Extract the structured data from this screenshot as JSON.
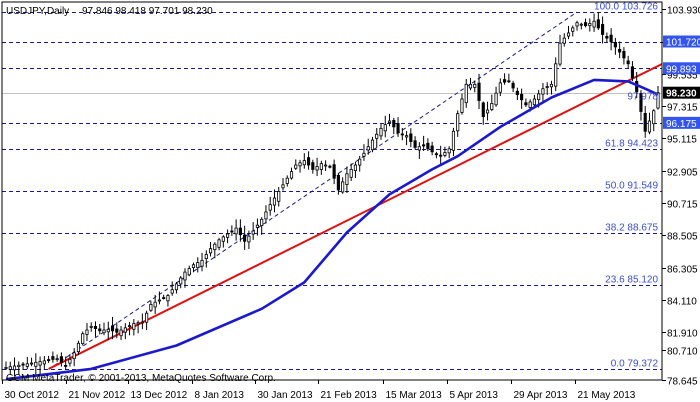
{
  "header": {
    "symbol": "USDJPY,Daily",
    "ohlc": "97.846 98.418 97.701 98.230",
    "watermark": "GCM MetaTrader, © 2001-2013, MetaQuotes Software Corp."
  },
  "colors": {
    "candle": "#000000",
    "ma_line": "#1a1acc",
    "trend_line": "#dd1111",
    "fib_grid": "#1a1a8c",
    "fib_text": "#3a4fd0",
    "tag_bg": "#3355ee",
    "price_tag_bg": "#000000"
  },
  "chart_data": {
    "type": "candlestick",
    "price_range": [
      78.645,
      104.14
    ],
    "y_ticks": [
      "103.930",
      "101.720",
      "99.535",
      "97.315",
      "95.115",
      "92.905",
      "90.715",
      "88.505",
      "86.305",
      "84.110",
      "81.910",
      "80.710",
      "78.645"
    ],
    "x_ticks": [
      "30 Oct 2012",
      "21 Nov 2012",
      "13 Dec 2012",
      "8 Jan 2013",
      "30 Jan 2013",
      "21 Feb 2013",
      "15 Mar 2013",
      "5 Apr 2013",
      "29 Apr 2013",
      "21 May 2013"
    ],
    "fib_levels": [
      {
        "label": "100.0 103.726",
        "price": 103.726
      },
      {
        "label": "61.8 94.423",
        "price": 94.423
      },
      {
        "label": "50.0 91.549",
        "price": 91.549
      },
      {
        "label": "38.2 88.675",
        "price": 88.675
      },
      {
        "label": "23.6 85.120",
        "price": 85.12
      },
      {
        "label": "0.0 79.372",
        "price": 79.372
      }
    ],
    "fib_side_label": {
      "label": "97.978",
      "price": 97.978
    },
    "level_tags": [
      {
        "label": "101.720",
        "price": 101.72
      },
      {
        "label": "99.893",
        "price": 99.893
      },
      {
        "label": "96.175",
        "price": 96.175
      }
    ],
    "current_price": {
      "label": "98.230",
      "price": 98.23
    },
    "close_path": [
      [
        0,
        79.5
      ],
      [
        6,
        79.8
      ],
      [
        10,
        80.0
      ],
      [
        12,
        80.1
      ],
      [
        14,
        79.6
      ],
      [
        16,
        80.5
      ],
      [
        18,
        81.8
      ],
      [
        20,
        82.3
      ],
      [
        22,
        82.0
      ],
      [
        24,
        82.1
      ],
      [
        26,
        81.9
      ],
      [
        28,
        82.2
      ],
      [
        30,
        82.5
      ],
      [
        32,
        82.6
      ],
      [
        34,
        83.8
      ],
      [
        36,
        84.1
      ],
      [
        38,
        84.4
      ],
      [
        40,
        85.2
      ],
      [
        42,
        86.0
      ],
      [
        44,
        86.5
      ],
      [
        46,
        86.8
      ],
      [
        48,
        87.6
      ],
      [
        50,
        88.2
      ],
      [
        52,
        88.6
      ],
      [
        54,
        89.0
      ],
      [
        56,
        88.1
      ],
      [
        58,
        88.8
      ],
      [
        60,
        89.6
      ],
      [
        62,
        90.6
      ],
      [
        64,
        91.5
      ],
      [
        66,
        92.4
      ],
      [
        68,
        93.3
      ],
      [
        70,
        93.6
      ],
      [
        72,
        93.0
      ],
      [
        74,
        93.4
      ],
      [
        76,
        93.2
      ],
      [
        78,
        91.6
      ],
      [
        80,
        92.7
      ],
      [
        82,
        93.3
      ],
      [
        84,
        94.1
      ],
      [
        86,
        95.0
      ],
      [
        88,
        95.8
      ],
      [
        90,
        96.3
      ],
      [
        92,
        95.5
      ],
      [
        94,
        95.3
      ],
      [
        96,
        94.5
      ],
      [
        98,
        94.6
      ],
      [
        100,
        94.2
      ],
      [
        102,
        93.9
      ],
      [
        104,
        94.4
      ],
      [
        106,
        96.8
      ],
      [
        108,
        98.8
      ],
      [
        110,
        98.8
      ],
      [
        112,
        96.6
      ],
      [
        114,
        97.5
      ],
      [
        116,
        98.9
      ],
      [
        118,
        99.0
      ],
      [
        120,
        98.1
      ],
      [
        122,
        97.4
      ],
      [
        124,
        97.8
      ],
      [
        126,
        98.5
      ],
      [
        128,
        98.8
      ],
      [
        130,
        101.6
      ],
      [
        132,
        102.3
      ],
      [
        134,
        103.0
      ],
      [
        136,
        102.8
      ],
      [
        138,
        103.1
      ],
      [
        140,
        102.2
      ],
      [
        142,
        101.7
      ],
      [
        144,
        101.0
      ],
      [
        146,
        100.2
      ],
      [
        148,
        98.3
      ],
      [
        150,
        95.6
      ],
      [
        152,
        97.0
      ],
      [
        153,
        98.23
      ]
    ],
    "ma_path": [
      [
        0,
        78.7
      ],
      [
        20,
        79.4
      ],
      [
        40,
        81.0
      ],
      [
        60,
        83.5
      ],
      [
        70,
        85.3
      ],
      [
        80,
        88.7
      ],
      [
        90,
        91.3
      ],
      [
        100,
        93.0
      ],
      [
        106,
        93.9
      ],
      [
        116,
        95.9
      ],
      [
        128,
        97.9
      ],
      [
        138,
        99.1
      ],
      [
        146,
        99.0
      ],
      [
        150,
        98.5
      ],
      [
        153,
        98.1
      ]
    ],
    "trend_line": {
      "x1": 10,
      "p1": 79.4,
      "x2": 153,
      "p2": 99.9
    },
    "n_bars": 153
  }
}
